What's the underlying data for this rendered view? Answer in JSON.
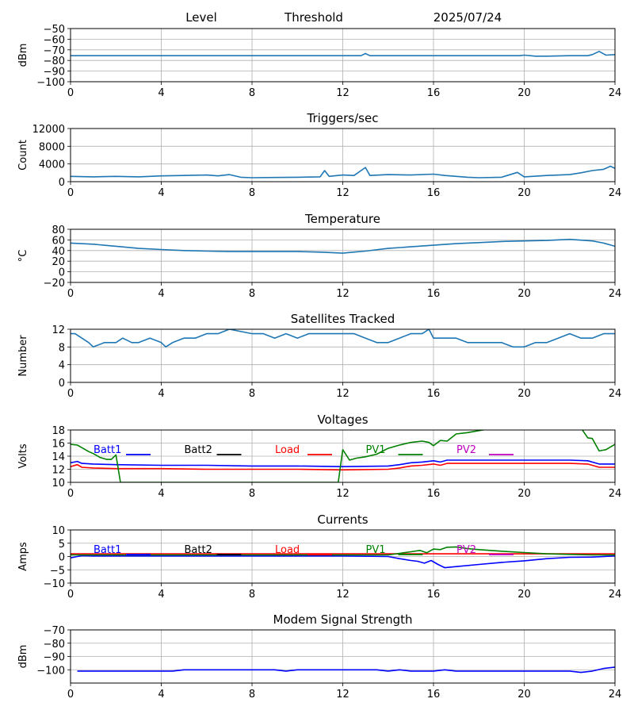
{
  "header": {
    "left": "Level",
    "middle": "Threshold",
    "right": "2025/07/24"
  },
  "colors": {
    "series_default": "#1f77b4",
    "grid": "#b0b0b0",
    "batt1": "#0000ff",
    "batt2": "#000000",
    "load": "#ff0000",
    "pv1": "#008000",
    "pv2": "#bf00bf"
  },
  "chart_data": [
    {
      "id": "level",
      "type": "line",
      "title": "",
      "ylabel": "dBm",
      "xlim": [
        0,
        24
      ],
      "ylim": [
        -100,
        -50
      ],
      "xticks": [
        0,
        4,
        8,
        12,
        16,
        20,
        24
      ],
      "yticks": [
        -100,
        -90,
        -80,
        -70,
        -60,
        -50
      ],
      "grid": true,
      "series": [
        {
          "color": "#1f77b4",
          "x": [
            0,
            2,
            4,
            6,
            8,
            10,
            12,
            12.8,
            13,
            13.2,
            14,
            16,
            18,
            19.8,
            20,
            20.5,
            21,
            22,
            22.8,
            23,
            23.3,
            23.6,
            24
          ],
          "y": [
            -75.5,
            -75.5,
            -75.5,
            -75.5,
            -75.5,
            -75.5,
            -75.5,
            -75.5,
            -73.5,
            -75.5,
            -75.5,
            -75.5,
            -75.5,
            -75.5,
            -75,
            -76,
            -76,
            -75.5,
            -75.5,
            -74.5,
            -71.5,
            -75,
            -74.5
          ]
        }
      ]
    },
    {
      "id": "triggers",
      "type": "line",
      "title": "Triggers/sec",
      "ylabel": "Count",
      "xlim": [
        0,
        24
      ],
      "ylim": [
        0,
        12000
      ],
      "xticks": [
        0,
        4,
        8,
        12,
        16,
        20,
        24
      ],
      "yticks": [
        0,
        4000,
        8000,
        12000
      ],
      "grid": true,
      "series": [
        {
          "color": "#1f77b4",
          "x": [
            0,
            1,
            2,
            3,
            4,
            5,
            6,
            6.5,
            7,
            7.5,
            8,
            9,
            10,
            11,
            11.2,
            11.4,
            12,
            12.5,
            13,
            13.2,
            14,
            15,
            16,
            16.5,
            17,
            17.5,
            18,
            19,
            19.7,
            20,
            21,
            22,
            22.5,
            23,
            23.5,
            23.8,
            24
          ],
          "y": [
            1200,
            1100,
            1200,
            1100,
            1300,
            1400,
            1500,
            1300,
            1600,
            1000,
            900,
            950,
            1000,
            1100,
            2500,
            1200,
            1500,
            1400,
            3200,
            1400,
            1600,
            1500,
            1700,
            1400,
            1200,
            1000,
            900,
            1000,
            2100,
            1100,
            1400,
            1600,
            2000,
            2500,
            2800,
            3500,
            3000
          ]
        }
      ]
    },
    {
      "id": "temperature",
      "type": "line",
      "title": "Temperature",
      "ylabel": "°C",
      "xlim": [
        0,
        24
      ],
      "ylim": [
        -20,
        80
      ],
      "xticks": [
        0,
        4,
        8,
        12,
        16,
        20,
        24
      ],
      "yticks": [
        -20,
        0,
        20,
        40,
        60,
        80
      ],
      "grid": true,
      "series": [
        {
          "color": "#1f77b4",
          "x": [
            0,
            1,
            2,
            3,
            4,
            5,
            6,
            7,
            8,
            9,
            10,
            11,
            12,
            13,
            14,
            15,
            16,
            17,
            18,
            19,
            20,
            21,
            22,
            23,
            23.5,
            24
          ],
          "y": [
            54,
            52,
            48,
            44,
            42,
            40,
            39,
            38,
            38,
            38,
            38,
            37,
            35,
            39,
            44,
            47,
            50,
            53,
            55,
            57,
            58,
            59,
            61,
            58,
            54,
            48
          ]
        }
      ]
    },
    {
      "id": "satellites",
      "type": "line",
      "title": "Satellites Tracked",
      "ylabel": "Number",
      "xlim": [
        0,
        24
      ],
      "ylim": [
        0,
        12
      ],
      "xticks": [
        0,
        4,
        8,
        12,
        16,
        20,
        24
      ],
      "yticks": [
        0,
        4,
        8,
        12
      ],
      "grid": true,
      "series": [
        {
          "color": "#1f77b4",
          "x": [
            0,
            0.2,
            0.5,
            0.8,
            1,
            1.5,
            2,
            2.3,
            2.7,
            3,
            3.5,
            4,
            4.2,
            4.5,
            5,
            5.5,
            6,
            6.5,
            7,
            8,
            8.5,
            9,
            9.5,
            10,
            10.5,
            11,
            11.5,
            12,
            12.5,
            13,
            13.5,
            14,
            14.5,
            15,
            15.5,
            15.8,
            16,
            16.5,
            17,
            17.5,
            18,
            18.5,
            19,
            19.5,
            20,
            20.5,
            21,
            21.5,
            22,
            22.5,
            23,
            23.5,
            24
          ],
          "y": [
            11,
            11,
            10,
            9,
            8,
            9,
            9,
            10,
            9,
            9,
            10,
            9,
            8,
            9,
            10,
            10,
            11,
            11,
            12,
            11,
            11,
            10,
            11,
            10,
            11,
            11,
            11,
            11,
            11,
            10,
            9,
            9,
            10,
            11,
            11,
            12,
            10,
            10,
            10,
            9,
            9,
            9,
            9,
            8,
            8,
            9,
            9,
            10,
            11,
            10,
            10,
            11,
            11
          ]
        }
      ]
    },
    {
      "id": "voltages",
      "type": "line",
      "title": "Voltages",
      "ylabel": "Volts",
      "xlim": [
        0,
        24
      ],
      "ylim": [
        10,
        18
      ],
      "xticks": [
        0,
        4,
        8,
        12,
        16,
        20,
        24
      ],
      "yticks": [
        10,
        12,
        14,
        16,
        18
      ],
      "grid": true,
      "legend": [
        "Batt1",
        "Batt2",
        "Load",
        "PV1",
        "PV2"
      ],
      "series": [
        {
          "name": "Batt1",
          "color": "#0000ff",
          "x": [
            0,
            0.3,
            0.5,
            1,
            2,
            4,
            6,
            8,
            10,
            12,
            14,
            14.5,
            15,
            15.5,
            16,
            16.3,
            16.6,
            17,
            18,
            20,
            22,
            22.8,
            23.3,
            24
          ],
          "y": [
            13,
            13.2,
            12.9,
            12.8,
            12.7,
            12.6,
            12.6,
            12.5,
            12.5,
            12.4,
            12.5,
            12.7,
            13.0,
            13.1,
            13.3,
            13.1,
            13.4,
            13.4,
            13.4,
            13.4,
            13.4,
            13.3,
            12.8,
            12.8
          ]
        },
        {
          "name": "Load",
          "color": "#ff0000",
          "x": [
            0,
            0.3,
            0.5,
            1,
            2,
            4,
            6,
            8,
            10,
            12,
            14,
            14.5,
            15,
            15.5,
            16,
            16.3,
            16.6,
            17,
            18,
            20,
            22,
            22.8,
            23.3,
            24
          ],
          "y": [
            12.4,
            12.7,
            12.3,
            12.2,
            12.1,
            12.1,
            12.0,
            12.0,
            12.0,
            11.9,
            12.0,
            12.2,
            12.5,
            12.6,
            12.8,
            12.6,
            12.9,
            12.9,
            12.9,
            12.9,
            12.9,
            12.8,
            12.3,
            12.3
          ]
        },
        {
          "name": "PV1",
          "color": "#008000",
          "x": [
            0,
            0.3,
            0.5,
            0.8,
            1,
            1.3,
            1.6,
            1.8,
            2,
            2.2,
            11.8,
            12,
            12.3,
            12.6,
            13,
            13.5,
            14,
            14.5,
            15,
            15.5,
            15.8,
            16,
            16.3,
            16.6,
            17,
            17.5,
            18,
            19,
            20,
            21,
            22,
            22.5,
            22.8,
            23,
            23.3,
            23.6,
            24
          ],
          "y": [
            15.8,
            15.7,
            15.3,
            14.7,
            14.4,
            13.8,
            13.5,
            13.5,
            14.2,
            10,
            10,
            15.0,
            13.4,
            13.7,
            13.9,
            14.3,
            15.2,
            15.7,
            16.1,
            16.3,
            16.1,
            15.6,
            16.4,
            16.3,
            17.4,
            17.6,
            17.9,
            18.5,
            18.6,
            18.7,
            18.6,
            18.3,
            16.8,
            16.7,
            14.8,
            15.0,
            15.8
          ]
        }
      ]
    },
    {
      "id": "currents",
      "type": "line",
      "title": "Currents",
      "ylabel": "Amps",
      "xlim": [
        0,
        24
      ],
      "ylim": [
        -10,
        10
      ],
      "xticks": [
        0,
        4,
        8,
        12,
        16,
        20,
        24
      ],
      "yticks": [
        -10,
        -5,
        0,
        5,
        10
      ],
      "grid": true,
      "legend": [
        "Batt1",
        "Batt2",
        "Load",
        "PV1",
        "PV2"
      ],
      "series": [
        {
          "name": "Batt1",
          "color": "#0000ff",
          "x": [
            0,
            0.3,
            0.5,
            1,
            2,
            4,
            6,
            8,
            10,
            12,
            14,
            14.5,
            15,
            15.3,
            15.6,
            15.9,
            16.2,
            16.5,
            17,
            18,
            19,
            20,
            21,
            22,
            23,
            24
          ],
          "y": [
            -0.5,
            0,
            0.3,
            0.2,
            0.2,
            0.2,
            0.2,
            0.2,
            0.2,
            0.2,
            0,
            -0.8,
            -1.5,
            -1.8,
            -2.5,
            -1.5,
            -3.0,
            -4.2,
            -3.8,
            -3.0,
            -2.2,
            -1.6,
            -0.8,
            -0.3,
            -0.2,
            0.2
          ]
        },
        {
          "name": "Load",
          "color": "#ff0000",
          "x": [
            0,
            4,
            8,
            12,
            16,
            20,
            24
          ],
          "y": [
            1.0,
            1.0,
            1.0,
            1.0,
            1.0,
            1.0,
            1.0
          ]
        },
        {
          "name": "PV1",
          "color": "#008000",
          "x": [
            0,
            4,
            8,
            12,
            14,
            14.5,
            15,
            15.4,
            15.7,
            16,
            16.3,
            16.6,
            17,
            17.5,
            18,
            19,
            20,
            21,
            22,
            23,
            24
          ],
          "y": [
            0.6,
            0.6,
            0.6,
            0.6,
            0.6,
            1.2,
            1.8,
            2.3,
            1.4,
            2.8,
            2.6,
            3.5,
            3.6,
            3.0,
            2.6,
            2.0,
            1.5,
            1.0,
            0.8,
            0.6,
            0.6
          ]
        }
      ]
    },
    {
      "id": "modem",
      "type": "line",
      "title": "Modem Signal Strength",
      "ylabel": "dBm",
      "xlim": [
        0,
        24
      ],
      "ylim": [
        -110,
        -70
      ],
      "xticks": [
        0,
        4,
        8,
        12,
        16,
        20,
        24
      ],
      "yticks": [
        -100,
        -90,
        -80,
        -70
      ],
      "grid": true,
      "series": [
        {
          "color": "#0000ff",
          "x": [
            0.3,
            1,
            2,
            3,
            4,
            4.5,
            5,
            6,
            7,
            8,
            8.5,
            9,
            9.5,
            10,
            11,
            12,
            13,
            13.5,
            14,
            14.5,
            15,
            16,
            16.5,
            17,
            18,
            19,
            20,
            21,
            22,
            22.5,
            23,
            23.5,
            24
          ],
          "y": [
            -101,
            -101,
            -101,
            -101,
            -101,
            -101,
            -100,
            -100,
            -100,
            -100,
            -100,
            -100,
            -101,
            -100,
            -100,
            -100,
            -100,
            -100,
            -101,
            -100,
            -101,
            -101,
            -100,
            -101,
            -101,
            -101,
            -101,
            -101,
            -101,
            -102,
            -101,
            -99,
            -98
          ]
        }
      ]
    }
  ]
}
